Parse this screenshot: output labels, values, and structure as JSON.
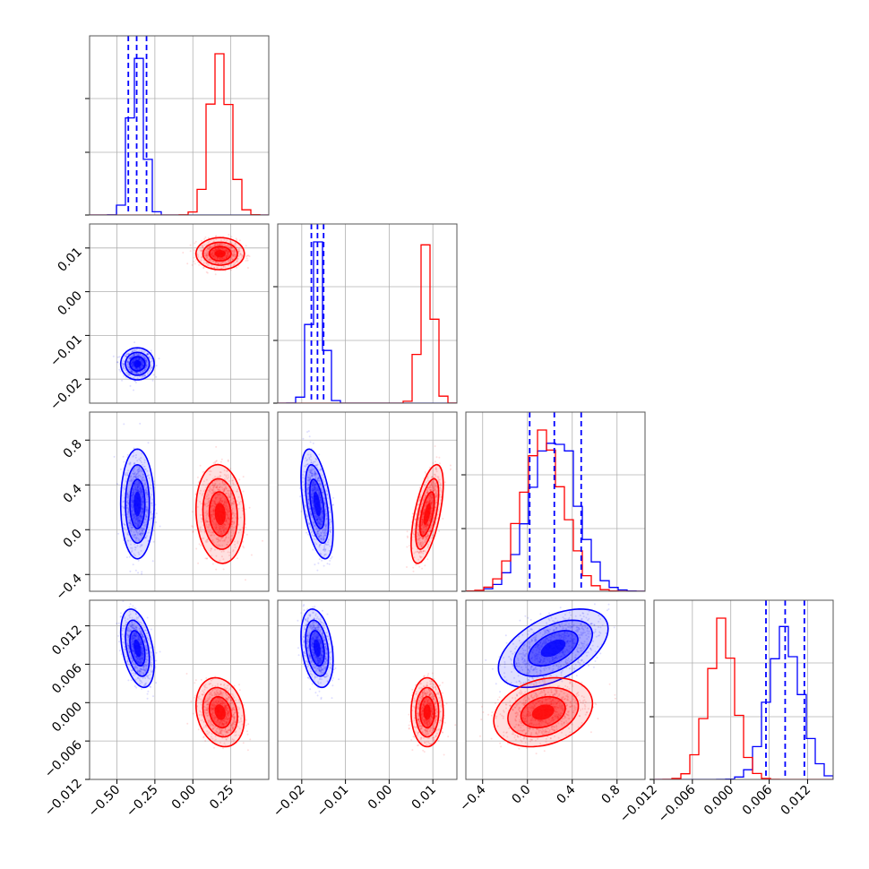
{
  "chart_data": {
    "type": "corner",
    "title": "",
    "grid": true,
    "legend": "none",
    "colors": {
      "a": "#0000ff",
      "b": "#ff0000"
    },
    "series": [
      {
        "color": "#0000ff",
        "means": [
          -0.365,
          -0.0165,
          0.23,
          0.0085
        ],
        "sds": [
          0.045,
          0.0015,
          0.2,
          0.0025
        ],
        "quantiles": [
          [
            -0.425,
            -0.37,
            -0.305
          ],
          [
            -0.0178,
            -0.0164,
            -0.015
          ],
          [
            0.02,
            0.24,
            0.48
          ],
          [
            0.0055,
            0.0085,
            0.0115
          ]
        ]
      },
      {
        "color": "#ff0000",
        "means": [
          0.18,
          0.0087,
          0.14,
          -0.0015
        ],
        "sds": [
          0.065,
          0.0015,
          0.18,
          0.0022
        ],
        "quantiles": []
      }
    ],
    "correlations": [
      [
        [
          0,
          1
        ],
        0.0,
        0.0
      ],
      [
        [
          0,
          2
        ],
        0.0,
        -0.1
      ],
      [
        [
          1,
          2
        ],
        -0.5,
        0.6
      ],
      [
        [
          0,
          3
        ],
        -0.4,
        -0.2
      ],
      [
        [
          1,
          3
        ],
        -0.3,
        0.0
      ],
      [
        [
          2,
          3
        ],
        0.5,
        0.25
      ]
    ],
    "params": [
      {
        "min": -0.68,
        "max": 0.5,
        "ticks": [
          -0.5,
          -0.25,
          0.0,
          0.25
        ],
        "ticklabels": [
          "−0.50",
          "−0.25",
          "0.00",
          "0.25"
        ]
      },
      {
        "min": -0.0255,
        "max": 0.0155,
        "ticks": [
          -0.02,
          -0.01,
          0.0,
          0.01
        ],
        "ticklabels": [
          "−0.02",
          "−0.01",
          "0.00",
          "0.01"
        ]
      },
      {
        "min": -0.55,
        "max": 1.05,
        "ticks": [
          -0.4,
          0.0,
          0.4,
          0.8
        ],
        "ticklabels": [
          "−0.4",
          "0.0",
          "0.4",
          "0.8"
        ]
      },
      {
        "min": -0.012,
        "max": 0.016,
        "ticks": [
          -0.012,
          -0.006,
          0.0,
          0.006,
          0.012
        ],
        "ticklabels": [
          "−0.012",
          "−0.006",
          "0.000",
          "0.006",
          "0.012"
        ]
      }
    ]
  }
}
